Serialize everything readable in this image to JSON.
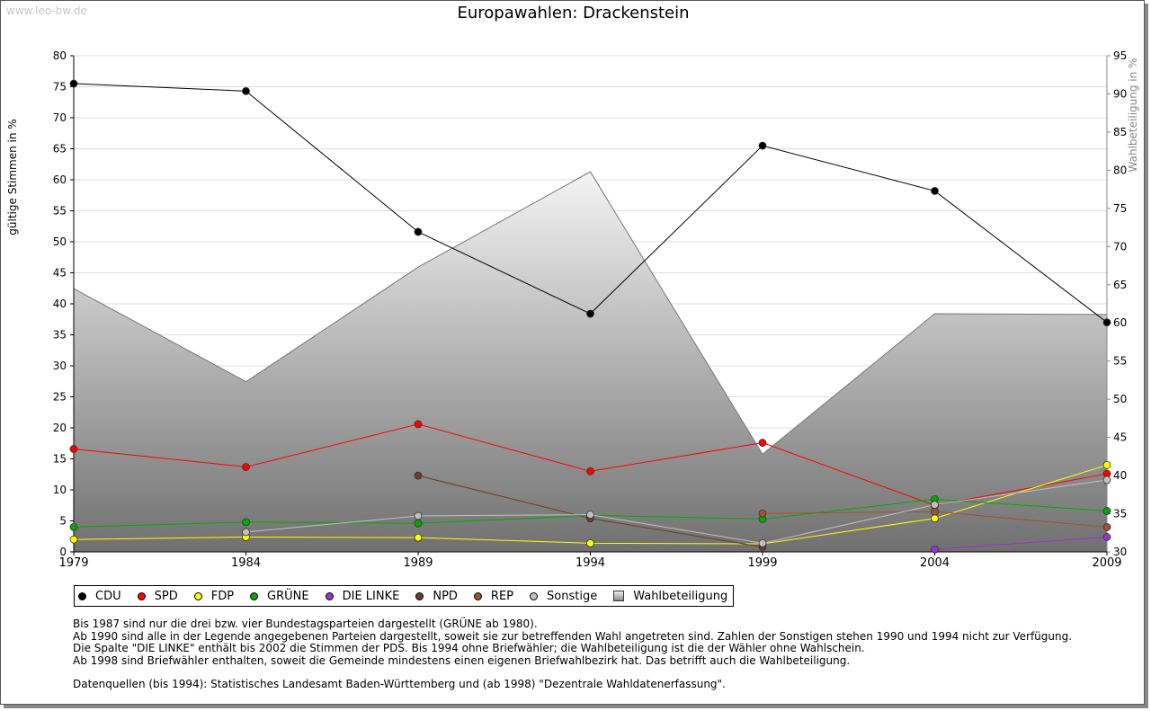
{
  "watermark": "www.leo-bw.de",
  "chart_data": {
    "type": "line",
    "title": "Europawahlen: Drackenstein",
    "ylabel_left": "gültige Stimmen in %",
    "ylabel_right": "Wahlbeteiligung in %",
    "x": [
      "1979",
      "1984",
      "1989",
      "1994",
      "1999",
      "2004",
      "2009"
    ],
    "ylim_left": [
      0,
      80
    ],
    "yticks_left": [
      0,
      5,
      10,
      15,
      20,
      25,
      30,
      35,
      40,
      45,
      50,
      55,
      60,
      65,
      70,
      75,
      80
    ],
    "ylim_right": [
      30,
      95
    ],
    "yticks_right": [
      30,
      35,
      40,
      45,
      50,
      55,
      60,
      65,
      70,
      75,
      80,
      85,
      90,
      95
    ],
    "grid": true,
    "legend_position": "bottom",
    "turnout": {
      "name": "Wahlbeteiligung",
      "axis": "right",
      "values": [
        64.5,
        52.3,
        67.3,
        79.8,
        42.8,
        61.2,
        61.1
      ]
    },
    "series": [
      {
        "name": "CDU",
        "color": "#000000",
        "values": [
          75.5,
          74.3,
          51.6,
          38.4,
          65.5,
          58.2,
          37.0
        ]
      },
      {
        "name": "SPD",
        "color": "#ff0000",
        "values": [
          16.6,
          13.7,
          20.6,
          13.0,
          17.6,
          7.5,
          12.6
        ]
      },
      {
        "name": "FDP",
        "color": "#ffff00",
        "values": [
          2.0,
          2.4,
          2.3,
          1.4,
          1.3,
          5.4,
          14.0
        ]
      },
      {
        "name": "GRÜNE",
        "color": "#00aa00",
        "values": [
          4.0,
          4.8,
          4.6,
          5.9,
          5.3,
          8.5,
          6.6
        ]
      },
      {
        "name": "DIE LINKE",
        "color": "#9933cc",
        "values": [
          null,
          null,
          null,
          null,
          null,
          0.4,
          2.4
        ]
      },
      {
        "name": "NPD",
        "color": "#6b3e26",
        "values": [
          null,
          null,
          12.3,
          5.4,
          0.8,
          null,
          null
        ]
      },
      {
        "name": "REP",
        "color": "#a0522d",
        "values": [
          null,
          null,
          null,
          null,
          6.2,
          6.5,
          4.0
        ]
      },
      {
        "name": "Sonstige",
        "color": "#c0c0c0",
        "values": [
          null,
          3.2,
          5.8,
          6.0,
          1.4,
          7.6,
          11.6
        ]
      }
    ]
  },
  "legend": {
    "items": [
      {
        "label": "CDU",
        "color": "#000000",
        "marker": "dot"
      },
      {
        "label": "SPD",
        "color": "#ff0000",
        "marker": "dot"
      },
      {
        "label": "FDP",
        "color": "#ffff00",
        "marker": "dot"
      },
      {
        "label": "GRÜNE",
        "color": "#00aa00",
        "marker": "dot"
      },
      {
        "label": "DIE LINKE",
        "color": "#9933cc",
        "marker": "dot"
      },
      {
        "label": "NPD",
        "color": "#6b3e26",
        "marker": "dot"
      },
      {
        "label": "REP",
        "color": "#a0522d",
        "marker": "dot"
      },
      {
        "label": "Sonstige",
        "color": "#c0c0c0",
        "marker": "dot"
      },
      {
        "label": "Wahlbeteiligung",
        "color": "#8a8a8a",
        "marker": "box"
      }
    ]
  },
  "notes": {
    "line1": "Bis 1987 sind nur die drei bzw. vier Bundestagsparteien dargestellt (GRÜNE ab 1980).",
    "line2": "Ab 1990 sind alle in der Legende angegebenen Parteien dargestellt, soweit sie zur betreffenden Wahl angetreten sind. Zahlen der Sonstigen stehen 1990 und 1994 nicht zur Verfügung.",
    "line3": "Die Spalte \"DIE LINKE\" enthält bis 2002 die Stimmen der PDS. Bis 1994 ohne Briefwähler; die Wahlbeteiligung ist die der Wähler ohne Wahlschein.",
    "line4": "Ab 1998 sind Briefwähler enthalten, soweit die Gemeinde mindestens einen eigenen Briefwahlbezirk hat. Das betrifft auch die Wahlbeteiligung.",
    "line5": "Datenquellen (bis 1994): Statistisches Landesamt Baden-Württemberg und (ab 1998) \"Dezentrale Wahldatenerfassung\"."
  }
}
